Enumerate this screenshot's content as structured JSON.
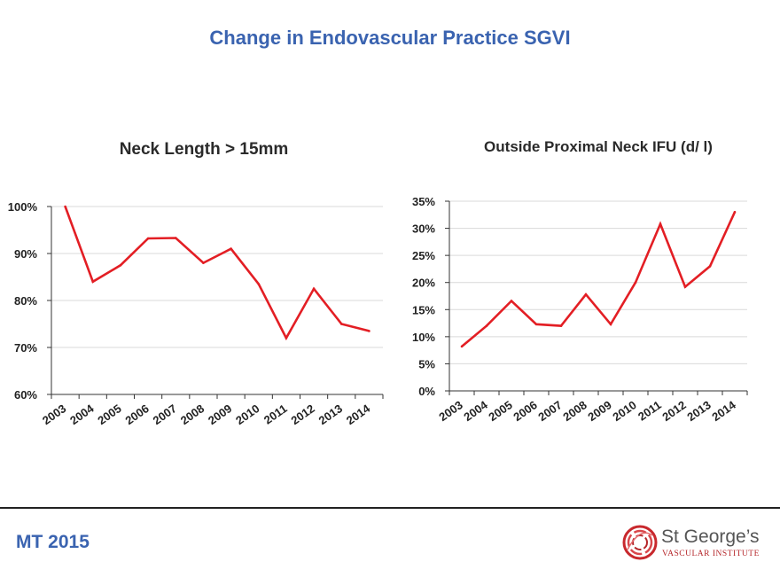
{
  "slide": {
    "title": "Change in Endovascular Practice SGVI",
    "footer_left": "MT 2015",
    "logo_name": "St George’s",
    "logo_sub": "VASCULAR INSTITUTE"
  },
  "colors": {
    "title": "#3a63b0",
    "line": "#e31e24",
    "axis": "#333333",
    "grid": "#d9d9d9"
  },
  "chart_data": [
    {
      "type": "line",
      "title": "Neck Length > 15mm",
      "categories": [
        "2003",
        "2004",
        "2005",
        "2006",
        "2007",
        "2008",
        "2009",
        "2010",
        "2011",
        "2012",
        "2013",
        "2014"
      ],
      "values": [
        100,
        84,
        87.5,
        93.2,
        93.3,
        88,
        91,
        83.5,
        72,
        82.5,
        75,
        73.5
      ],
      "ylim": [
        60,
        100
      ],
      "yticks": [
        60,
        70,
        80,
        90,
        100
      ],
      "ytick_labels": [
        "60%",
        "70%",
        "80%",
        "90%",
        "100%"
      ],
      "grid": true
    },
    {
      "type": "line",
      "title": "Outside Proximal Neck IFU (d/ l)",
      "categories": [
        "2003",
        "2004",
        "2005",
        "2006",
        "2007",
        "2008",
        "2009",
        "2010",
        "2011",
        "2012",
        "2013",
        "2014"
      ],
      "values": [
        8.2,
        12,
        16.6,
        12.3,
        12,
        17.8,
        12.3,
        20,
        30.8,
        19.2,
        23,
        33
      ],
      "ylim": [
        0,
        35
      ],
      "yticks": [
        0,
        5,
        10,
        15,
        20,
        25,
        30,
        35
      ],
      "ytick_labels": [
        "0%",
        "5%",
        "10%",
        "15%",
        "20%",
        "25%",
        "30%",
        "35%"
      ],
      "grid": true
    }
  ]
}
